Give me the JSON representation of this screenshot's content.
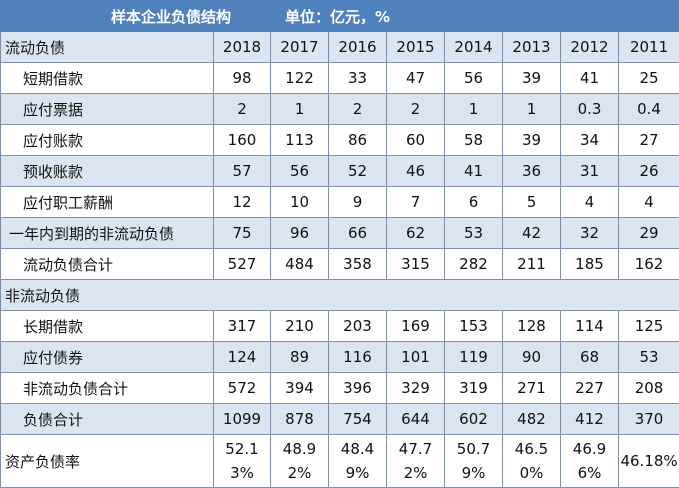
{
  "table": {
    "title": "样本企业负债结构",
    "unit": "单位：亿元，%",
    "header": {
      "label": "流动负债",
      "years": [
        "2018",
        "2017",
        "2016",
        "2015",
        "2014",
        "2013",
        "2012",
        "2011"
      ]
    },
    "current_rows": [
      {
        "label": "短期借款",
        "values": [
          "98",
          "122",
          "33",
          "47",
          "56",
          "39",
          "41",
          "25"
        ]
      },
      {
        "label": "应付票据",
        "values": [
          "2",
          "1",
          "2",
          "2",
          "1",
          "1",
          "0.3",
          "0.4"
        ]
      },
      {
        "label": "应付账款",
        "values": [
          "160",
          "113",
          "86",
          "60",
          "58",
          "39",
          "34",
          "27"
        ]
      },
      {
        "label": "预收账款",
        "values": [
          "57",
          "56",
          "52",
          "46",
          "41",
          "36",
          "31",
          "26"
        ]
      },
      {
        "label": "应付职工薪酬",
        "values": [
          "12",
          "10",
          "9",
          "7",
          "6",
          "5",
          "4",
          "4"
        ]
      },
      {
        "label": "一年内到期的非流动负债",
        "values": [
          "75",
          "96",
          "66",
          "62",
          "53",
          "42",
          "32",
          "29"
        ]
      },
      {
        "label": "流动负债合计",
        "values": [
          "527",
          "484",
          "358",
          "315",
          "282",
          "211",
          "185",
          "162"
        ]
      }
    ],
    "noncurrent_section_label": "非流动负债",
    "noncurrent_rows": [
      {
        "label": "长期借款",
        "values": [
          "317",
          "210",
          "203",
          "169",
          "153",
          "128",
          "114",
          "125"
        ]
      },
      {
        "label": "应付债券",
        "values": [
          "124",
          "89",
          "116",
          "101",
          "119",
          "90",
          "68",
          "53"
        ]
      },
      {
        "label": "非流动负债合计",
        "values": [
          "572",
          "394",
          "396",
          "329",
          "319",
          "271",
          "227",
          "208"
        ]
      },
      {
        "label": "负债合计",
        "values": [
          "1099",
          "878",
          "754",
          "644",
          "602",
          "482",
          "412",
          "370"
        ]
      }
    ],
    "ratio_row": {
      "label": "资产负债率",
      "values": [
        "52.13%",
        "48.92%",
        "48.49%",
        "47.72%",
        "50.79%",
        "46.50%",
        "46.96%",
        "46.18%"
      ]
    }
  },
  "colors": {
    "title_bg": "#4f81bd",
    "band": "#dbe5f1",
    "border": "#7f8fa6"
  }
}
